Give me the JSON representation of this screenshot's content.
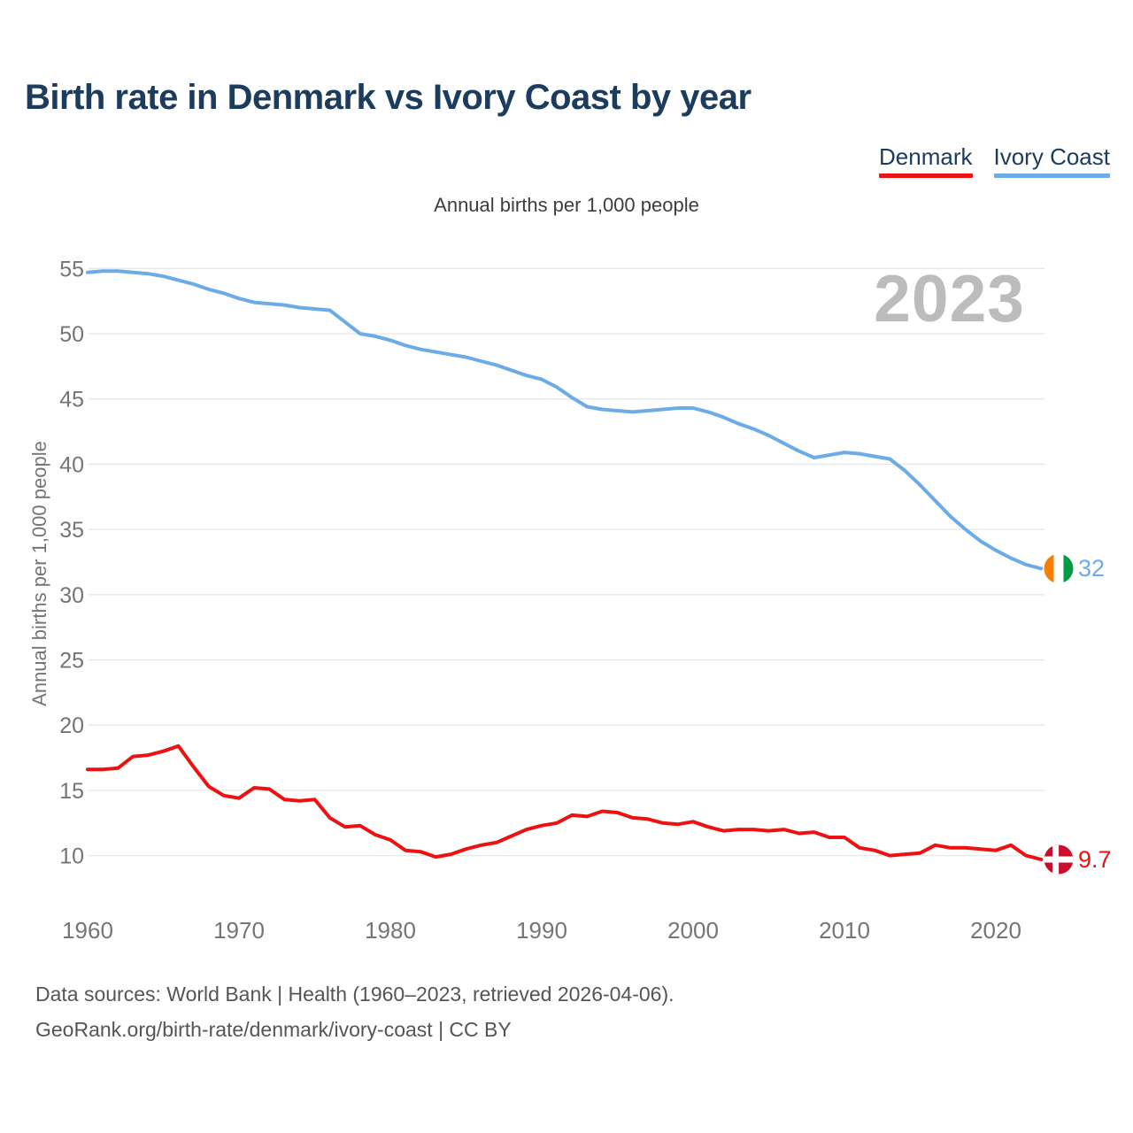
{
  "header": {
    "title": "Birth rate in Denmark vs Ivory Coast by year"
  },
  "legend": {
    "items": [
      {
        "label": "Denmark",
        "color": "#ee1111"
      },
      {
        "label": "Ivory Coast",
        "color": "#6babe8"
      }
    ]
  },
  "chart": {
    "subtitle": "Annual births per 1,000 people",
    "y_axis_label": "Annual births per 1,000 people",
    "watermark": "2023"
  },
  "end_labels": {
    "ivory_coast": "32",
    "denmark": "9.7"
  },
  "footer": {
    "line1": "Data sources: World Bank | Health (1960–2023, retrieved 2026-04-06).",
    "line2": "GeoRank.org/birth-rate/denmark/ivory-coast | CC BY"
  },
  "colors": {
    "title": "#1c3c5e",
    "denmark_line": "#ee1111",
    "ivory_coast_line": "#6babe8",
    "watermark": "#bcbcbc",
    "gridline": "#e7e7e7",
    "tick_label": "#757575",
    "subtitle_text": "#3d3d3d",
    "footer_text": "#555555",
    "denmark_flag": {
      "field": "#c8102e",
      "cross": "#ffffff"
    },
    "ivory_coast_flag": {
      "orange": "#f77f00",
      "white": "#ffffff",
      "green": "#009a44"
    }
  },
  "chart_data": {
    "type": "line",
    "title": "Birth rate in Denmark vs Ivory Coast by year",
    "subtitle": "Annual births per 1,000 people",
    "xlabel": "",
    "ylabel": "Annual births per 1,000 people",
    "grid": true,
    "legend_position": "top-right",
    "ylim": [
      8.5,
      56
    ],
    "xlim": [
      1959,
      2026
    ],
    "yticks": [
      10,
      15,
      20,
      25,
      30,
      35,
      40,
      45,
      50,
      55
    ],
    "xticks": [
      1960,
      1970,
      1980,
      1990,
      2000,
      2010,
      2020
    ],
    "years": [
      1960,
      1961,
      1962,
      1963,
      1964,
      1965,
      1966,
      1967,
      1968,
      1969,
      1970,
      1971,
      1972,
      1973,
      1974,
      1975,
      1976,
      1977,
      1978,
      1979,
      1980,
      1981,
      1982,
      1983,
      1984,
      1985,
      1986,
      1987,
      1988,
      1989,
      1990,
      1991,
      1992,
      1993,
      1994,
      1995,
      1996,
      1997,
      1998,
      1999,
      2000,
      2001,
      2002,
      2003,
      2004,
      2005,
      2006,
      2007,
      2008,
      2009,
      2010,
      2011,
      2012,
      2013,
      2014,
      2015,
      2016,
      2017,
      2018,
      2019,
      2020,
      2021,
      2022,
      2023
    ],
    "series": [
      {
        "name": "Denmark",
        "color": "#ee1111",
        "end_label": "9.7",
        "values": [
          16.6,
          16.6,
          16.7,
          17.6,
          17.7,
          18.0,
          18.4,
          16.8,
          15.3,
          14.6,
          14.4,
          15.2,
          15.1,
          14.3,
          14.2,
          14.3,
          12.9,
          12.2,
          12.3,
          11.6,
          11.2,
          10.4,
          10.3,
          9.9,
          10.1,
          10.5,
          10.8,
          11.0,
          11.5,
          12.0,
          12.3,
          12.5,
          13.1,
          13.0,
          13.4,
          13.3,
          12.9,
          12.8,
          12.5,
          12.4,
          12.6,
          12.2,
          11.9,
          12.0,
          12.0,
          11.9,
          12.0,
          11.7,
          11.8,
          11.4,
          11.4,
          10.6,
          10.4,
          10.0,
          10.1,
          10.2,
          10.8,
          10.6,
          10.6,
          10.5,
          10.4,
          10.8,
          10.0,
          9.7
        ]
      },
      {
        "name": "Ivory Coast",
        "color": "#6babe8",
        "end_label": "32",
        "values": [
          54.7,
          54.8,
          54.8,
          54.7,
          54.6,
          54.4,
          54.1,
          53.8,
          53.4,
          53.1,
          52.7,
          52.4,
          52.3,
          52.2,
          52.0,
          51.9,
          51.8,
          50.9,
          50.0,
          49.8,
          49.5,
          49.1,
          48.8,
          48.6,
          48.4,
          48.2,
          47.9,
          47.6,
          47.2,
          46.8,
          46.5,
          45.9,
          45.1,
          44.4,
          44.2,
          44.1,
          44.0,
          44.1,
          44.2,
          44.3,
          44.3,
          44.0,
          43.6,
          43.1,
          42.7,
          42.2,
          41.6,
          41.0,
          40.5,
          40.7,
          40.9,
          40.8,
          40.6,
          40.4,
          39.5,
          38.4,
          37.2,
          36.0,
          35.0,
          34.1,
          33.4,
          32.8,
          32.3,
          32.0
        ]
      }
    ]
  }
}
